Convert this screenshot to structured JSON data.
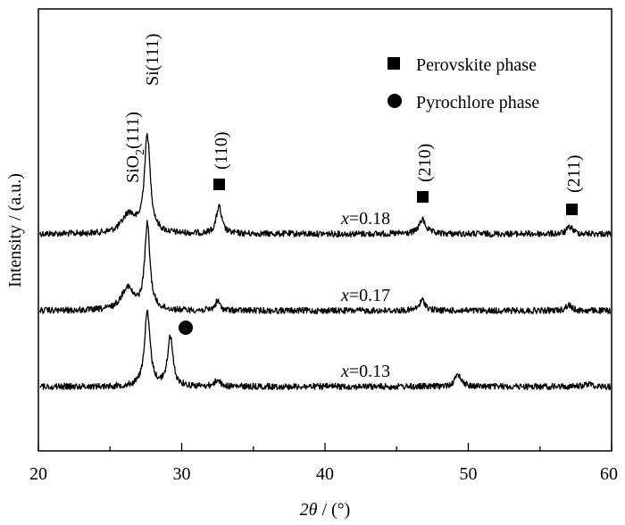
{
  "chart_data": {
    "type": "line",
    "title": "",
    "xlabel_symbol": "2θ",
    "xlabel_unit": " / (°)",
    "ylabel": "Intensity / (a.u.)",
    "xlim": [
      20,
      60
    ],
    "x_ticks": [
      "20",
      "30",
      "40",
      "50",
      "60"
    ],
    "y_ticks_labeled": false,
    "legend": {
      "placement": "top-right",
      "entries": [
        {
          "marker": "square",
          "label": "Perovskite phase"
        },
        {
          "marker": "circle",
          "label": "Pyrochlore phase"
        }
      ]
    },
    "series": [
      {
        "name": "x=0.18",
        "label_var": "x",
        "label_value": "=0.18",
        "baseline": 1.0,
        "peaks": [
          {
            "x": 26.3,
            "h": 0.4,
            "w": 0.55
          },
          {
            "x": 27.6,
            "h": 2.05,
            "w": 0.25
          },
          {
            "x": 32.6,
            "h": 0.58,
            "w": 0.22
          },
          {
            "x": 46.8,
            "h": 0.3,
            "w": 0.28
          },
          {
            "x": 57.1,
            "h": 0.15,
            "w": 0.25
          }
        ]
      },
      {
        "name": "x=0.17",
        "label_var": "x",
        "label_value": "=0.17",
        "baseline": 1.0,
        "peaks": [
          {
            "x": 26.2,
            "h": 0.48,
            "w": 0.5
          },
          {
            "x": 27.6,
            "h": 1.8,
            "w": 0.22
          },
          {
            "x": 32.5,
            "h": 0.2,
            "w": 0.2
          },
          {
            "x": 46.8,
            "h": 0.22,
            "w": 0.25
          },
          {
            "x": 57.0,
            "h": 0.12,
            "w": 0.25
          }
        ]
      },
      {
        "name": "x=0.13",
        "label_var": "x",
        "label_value": "=0.13",
        "baseline": 1.0,
        "peaks": [
          {
            "x": 27.6,
            "h": 1.55,
            "w": 0.24
          },
          {
            "x": 29.2,
            "h": 1.05,
            "w": 0.22
          },
          {
            "x": 32.5,
            "h": 0.15,
            "w": 0.2
          },
          {
            "x": 49.3,
            "h": 0.25,
            "w": 0.28
          },
          {
            "x": 58.4,
            "h": 0.06,
            "w": 0.3
          }
        ]
      }
    ],
    "peak_annotations": [
      {
        "text": "SiO",
        "sub": "2",
        "after": "(111)",
        "x": 26.3
      },
      {
        "text": "Si(111)",
        "sub": "",
        "after": "",
        "x": 27.6
      },
      {
        "text": "(110)",
        "sub": "",
        "after": "",
        "x": 32.6,
        "marker": "square"
      },
      {
        "text": "(210)",
        "sub": "",
        "after": "",
        "x": 46.8,
        "marker": "square"
      },
      {
        "text": "(211)",
        "sub": "",
        "after": "",
        "x": 57.1,
        "marker": "square"
      }
    ],
    "pyrochlore_marker": {
      "marker": "circle",
      "x": 30.1
    }
  }
}
